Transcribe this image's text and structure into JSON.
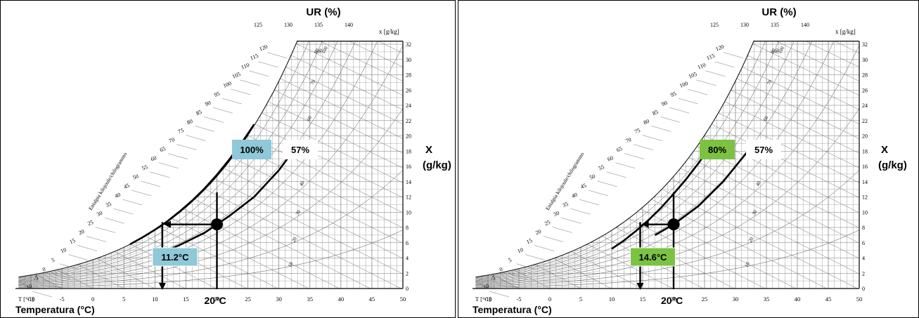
{
  "chart_data": [
    {
      "type": "line",
      "title": "UR (%)",
      "xlabel": "Temperatura (°C)",
      "ylabel": "X (g/kg)",
      "ylabel_line1": "X",
      "ylabel_line2": "(g/kg)",
      "x_axis_tag": "T [°C]",
      "y_axis_tag": "x [g/kg]",
      "enthalpy_axis_label": "Entalpia kilojoule/chilogrammo",
      "xlim": [
        -12,
        50
      ],
      "ylim": [
        0,
        33
      ],
      "x_ticks": [
        "-10",
        "-5",
        "0",
        "5",
        "10",
        "15",
        "20",
        "25",
        "30",
        "35",
        "40",
        "45",
        "50"
      ],
      "y_ticks": [
        "0",
        "2",
        "4",
        "6",
        "8",
        "10",
        "12",
        "14",
        "16",
        "18",
        "20",
        "22",
        "24",
        "26",
        "28",
        "30",
        "32"
      ],
      "enthalpy_ticks": [
        "-10",
        "-5",
        "0",
        "5",
        "10",
        "15",
        "20",
        "25",
        "30",
        "35",
        "40",
        "45",
        "50",
        "55",
        "60",
        "65",
        "70",
        "75",
        "80",
        "85",
        "90",
        "95",
        "100",
        "105",
        "110",
        "115",
        "120",
        "125",
        "130",
        "135",
        "140"
      ],
      "rh_inner_ticks": [
        "100",
        "90",
        "80",
        "70",
        "60",
        "50",
        "40",
        "30",
        "20",
        "10"
      ],
      "series": [
        {
          "name": "100%",
          "rh": 100,
          "x": [
            6,
            8,
            10,
            12,
            14,
            16,
            18,
            20,
            22,
            24,
            26
          ],
          "y": [
            5.8,
            6.7,
            7.7,
            8.8,
            10.1,
            11.5,
            13.1,
            14.9,
            16.9,
            19.1,
            21.5
          ]
        },
        {
          "name": "57%",
          "rh": 57,
          "x": [
            10,
            14,
            18,
            20,
            22,
            26,
            30,
            33
          ],
          "y": [
            4.3,
            5.7,
            7.3,
            8.4,
            9.5,
            12.0,
            15.5,
            18.8
          ]
        }
      ],
      "state_point": {
        "temperature": 20,
        "x": 8.4,
        "label": "20°C"
      },
      "dew_point": {
        "temperature": 11.2,
        "label": "11.2°C"
      },
      "rh_callouts": [
        {
          "label": "100%",
          "color": "#8fc8d8"
        },
        {
          "label": "57%",
          "color": "#ffffff"
        }
      ]
    },
    {
      "type": "line",
      "title": "UR (%)",
      "xlabel": "Temperatura (°C)",
      "ylabel": "X (g/kg)",
      "ylabel_line1": "X",
      "ylabel_line2": "(g/kg)",
      "x_axis_tag": "T [°C]",
      "y_axis_tag": "x [g/kg]",
      "enthalpy_axis_label": "Entalpia kilojoule/chilogrammo",
      "xlim": [
        -12,
        50
      ],
      "ylim": [
        0,
        33
      ],
      "x_ticks": [
        "-10",
        "-5",
        "0",
        "5",
        "10",
        "15",
        "20",
        "25",
        "30",
        "35",
        "40",
        "45",
        "50"
      ],
      "y_ticks": [
        "0",
        "2",
        "4",
        "6",
        "8",
        "10",
        "12",
        "14",
        "16",
        "18",
        "20",
        "22",
        "24",
        "26",
        "28",
        "30",
        "32"
      ],
      "enthalpy_ticks": [
        "-10",
        "-5",
        "0",
        "5",
        "10",
        "15",
        "20",
        "25",
        "30",
        "35",
        "40",
        "45",
        "50",
        "55",
        "60",
        "65",
        "70",
        "75",
        "80",
        "85",
        "90",
        "95",
        "100",
        "105",
        "110",
        "115",
        "120",
        "125",
        "130",
        "135",
        "140"
      ],
      "rh_inner_ticks": [
        "100",
        "90",
        "80",
        "70",
        "60",
        "50",
        "40",
        "30",
        "20",
        "10"
      ],
      "series": [
        {
          "name": "80%",
          "rh": 80,
          "x": [
            10,
            12,
            14,
            16,
            18,
            20,
            22,
            24,
            26
          ],
          "y": [
            5.2,
            6.3,
            7.6,
            9.0,
            10.6,
            12.4,
            14.3,
            16.4,
            18.7
          ]
        },
        {
          "name": "57%",
          "rh": 57,
          "x": [
            17,
            20,
            24,
            28,
            32
          ],
          "y": [
            7.0,
            8.4,
            10.8,
            14.0,
            18.0
          ]
        }
      ],
      "state_point": {
        "temperature": 20,
        "x": 8.4,
        "label": "20°C"
      },
      "dew_point": {
        "temperature": 14.6,
        "label": "14.6°C"
      },
      "rh_callouts": [
        {
          "label": "80%",
          "color": "#7cc242"
        },
        {
          "label": "57%",
          "color": "#ffffff"
        }
      ]
    }
  ]
}
